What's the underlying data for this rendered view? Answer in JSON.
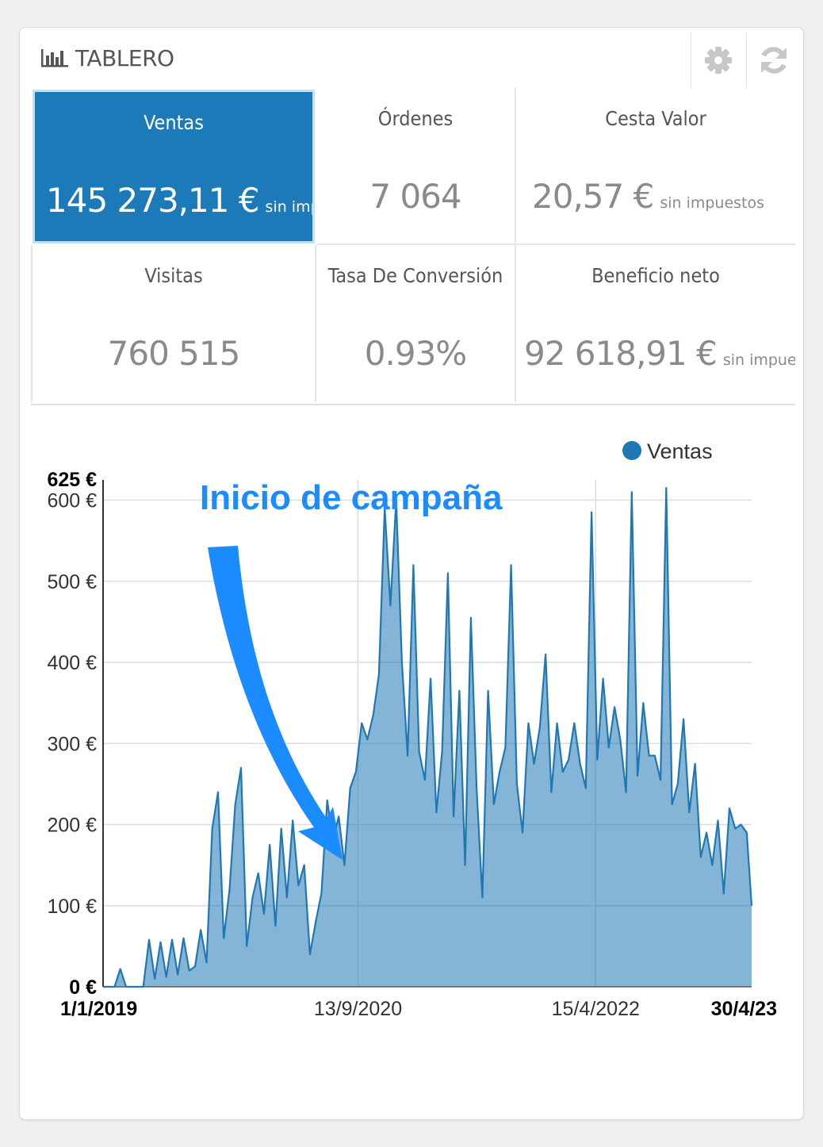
{
  "header": {
    "title": "TABLERO",
    "icons": [
      "bar-chart-icon",
      "gear-icon",
      "refresh-icon"
    ]
  },
  "kpis": [
    {
      "label": "Ventas",
      "value": "145 273,11 €",
      "suffix": "sin impuestos",
      "active": true
    },
    {
      "label": "Órdenes",
      "value": "7 064",
      "suffix": ""
    },
    {
      "label": "Cesta Valor",
      "value": "20,57 €",
      "suffix": "sin impuestos"
    },
    {
      "label": "Visitas",
      "value": "760 515",
      "suffix": ""
    },
    {
      "label": "Tasa De Conversión",
      "value": "0.93%",
      "suffix": ""
    },
    {
      "label": "Beneficio neto",
      "value": "92 618,91 €",
      "suffix": "sin impuestos"
    }
  ],
  "colors": {
    "accent": "#1c7ab8",
    "series": "#1f77b4",
    "annotation": "#1a8cff"
  },
  "chart_data": {
    "type": "line",
    "legend": {
      "position": "top-right",
      "entries": [
        "Ventas"
      ]
    },
    "annotation": {
      "text": "Inicio de campaña",
      "points_to": "2020-07-01"
    },
    "x_range": [
      "2019-01-01",
      "2023-04-30"
    ],
    "x_tick_labels": [
      "1/1/2019",
      "13/9/2020",
      "15/4/2022",
      "30/4/23"
    ],
    "x_ticks": [
      "2019-01-01",
      "2020-09-13",
      "2022-04-15",
      "2023-04-30"
    ],
    "ylim": [
      0,
      625
    ],
    "y_ticks": [
      0,
      100,
      200,
      300,
      400,
      500,
      600,
      625
    ],
    "y_tick_labels": [
      "0 €",
      "100 €",
      "200 €",
      "300 €",
      "400 €",
      "500 €",
      "600 €",
      "625 €"
    ],
    "grid": true,
    "series": [
      {
        "name": "Ventas",
        "x": [
          "2019-01-01",
          "2019-01-15",
          "2019-01-29",
          "2019-02-12",
          "2019-02-26",
          "2019-03-12",
          "2019-03-26",
          "2019-04-09",
          "2019-04-23",
          "2019-05-07",
          "2019-05-21",
          "2019-06-04",
          "2019-06-18",
          "2019-07-02",
          "2019-07-16",
          "2019-07-30",
          "2019-08-13",
          "2019-08-27",
          "2019-09-10",
          "2019-09-24",
          "2019-10-08",
          "2019-10-22",
          "2019-11-05",
          "2019-11-19",
          "2019-12-03",
          "2019-12-17",
          "2019-12-31",
          "2020-01-14",
          "2020-01-28",
          "2020-02-11",
          "2020-02-25",
          "2020-03-10",
          "2020-03-24",
          "2020-04-07",
          "2020-04-21",
          "2020-05-05",
          "2020-05-19",
          "2020-06-02",
          "2020-06-16",
          "2020-06-30",
          "2020-07-14",
          "2020-07-28",
          "2020-08-11",
          "2020-08-25",
          "2020-09-08",
          "2020-09-22",
          "2020-10-06",
          "2020-10-20",
          "2020-11-03",
          "2020-11-17",
          "2020-12-01",
          "2020-12-15",
          "2020-12-29",
          "2021-01-12",
          "2021-01-26",
          "2021-02-09",
          "2021-02-23",
          "2021-03-09",
          "2021-03-23",
          "2021-04-06",
          "2021-04-20",
          "2021-05-04",
          "2021-05-18",
          "2021-06-01",
          "2021-06-15",
          "2021-06-29",
          "2021-07-13",
          "2021-07-27",
          "2021-08-10",
          "2021-08-24",
          "2021-09-07",
          "2021-09-21",
          "2021-10-05",
          "2021-10-19",
          "2021-11-02",
          "2021-11-16",
          "2021-11-30",
          "2021-12-14",
          "2021-12-28",
          "2022-01-11",
          "2022-01-25",
          "2022-02-08",
          "2022-02-22",
          "2022-03-08",
          "2022-03-22",
          "2022-04-05",
          "2022-04-19",
          "2022-05-03",
          "2022-05-17",
          "2022-05-31",
          "2022-06-14",
          "2022-06-28",
          "2022-07-12",
          "2022-07-26",
          "2022-08-09",
          "2022-08-23",
          "2022-09-06",
          "2022-09-20",
          "2022-10-04",
          "2022-10-18",
          "2022-11-01",
          "2022-11-15",
          "2022-11-29",
          "2022-12-13",
          "2022-12-27",
          "2023-01-10",
          "2023-01-24",
          "2023-02-07",
          "2023-02-21",
          "2023-03-07",
          "2023-03-21",
          "2023-04-04",
          "2023-04-18",
          "2023-04-30"
        ],
        "values": [
          0,
          0,
          0,
          22,
          0,
          0,
          0,
          0,
          58,
          10,
          55,
          12,
          58,
          15,
          60,
          20,
          25,
          70,
          30,
          195,
          240,
          60,
          120,
          225,
          270,
          50,
          110,
          140,
          90,
          175,
          75,
          195,
          110,
          205,
          125,
          150,
          40,
          80,
          115,
          230,
          180,
          210,
          150,
          245,
          265,
          325,
          305,
          335,
          385,
          590,
          470,
          600,
          400,
          285,
          520,
          290,
          255,
          380,
          215,
          290,
          510,
          210,
          365,
          150,
          455,
          245,
          110,
          365,
          225,
          265,
          295,
          520,
          250,
          190,
          325,
          275,
          320,
          410,
          240,
          325,
          265,
          280,
          325,
          275,
          245,
          585,
          280,
          380,
          295,
          345,
          305,
          240,
          610,
          260,
          350,
          285,
          285,
          255,
          615,
          225,
          250,
          330,
          215,
          275,
          160,
          190,
          150,
          205,
          115,
          220,
          195,
          200,
          190,
          100
        ]
      }
    ]
  }
}
